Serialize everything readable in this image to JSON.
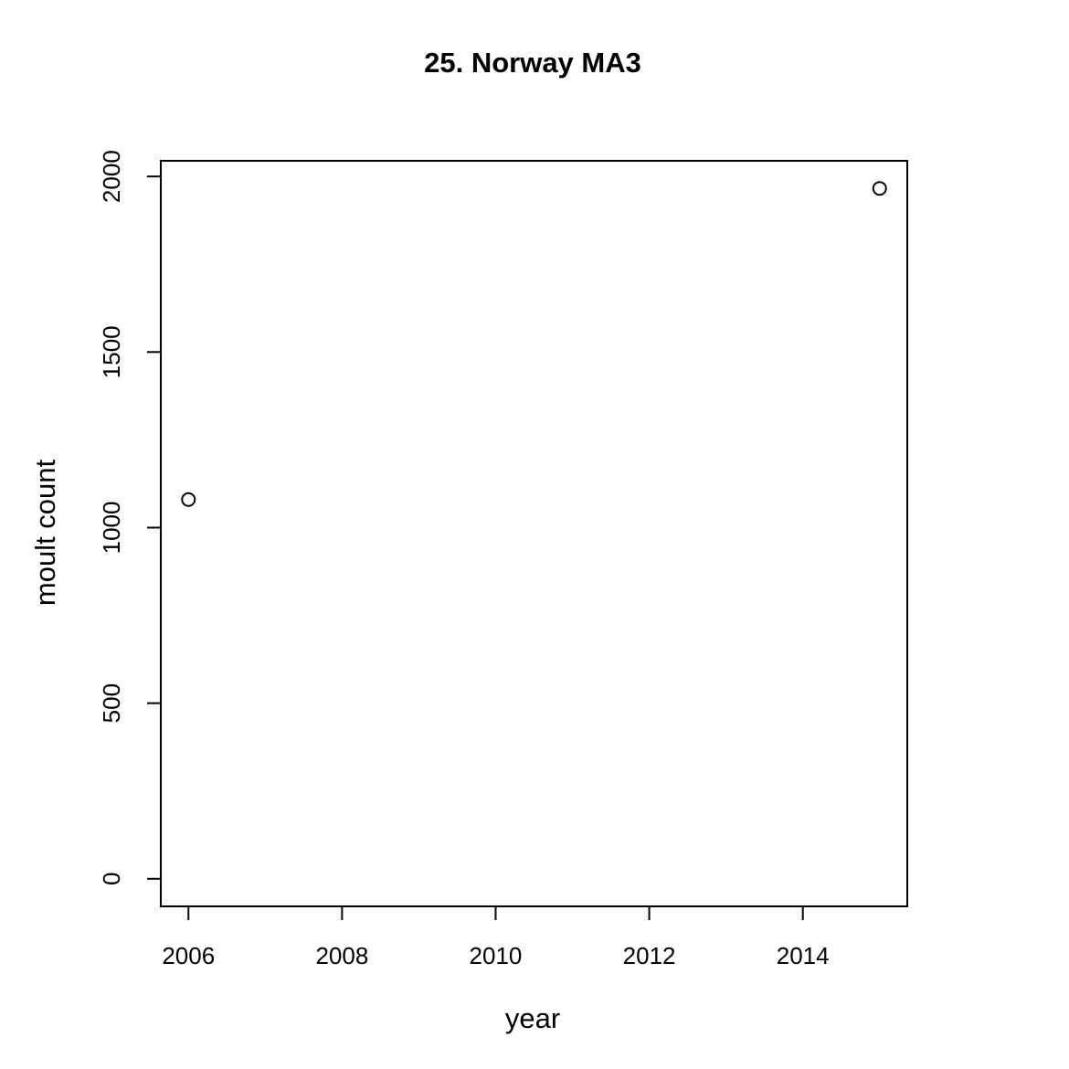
{
  "chart_data": {
    "type": "scatter",
    "title": "25. Norway MA3",
    "x_label": "year",
    "y_label": "moult count",
    "x": [
      2006,
      2015
    ],
    "series": [
      {
        "values": [
          1080,
          1966
        ],
        "color": "#000000"
      }
    ],
    "xlim": [
      2005.64,
      2015.36
    ],
    "ylim": [
      -78.6,
      2044.6
    ],
    "xticks": [
      2006,
      2008,
      2010,
      2012,
      2014
    ],
    "yticks": [
      0,
      500,
      1000,
      1500,
      2000
    ],
    "grid": false
  }
}
